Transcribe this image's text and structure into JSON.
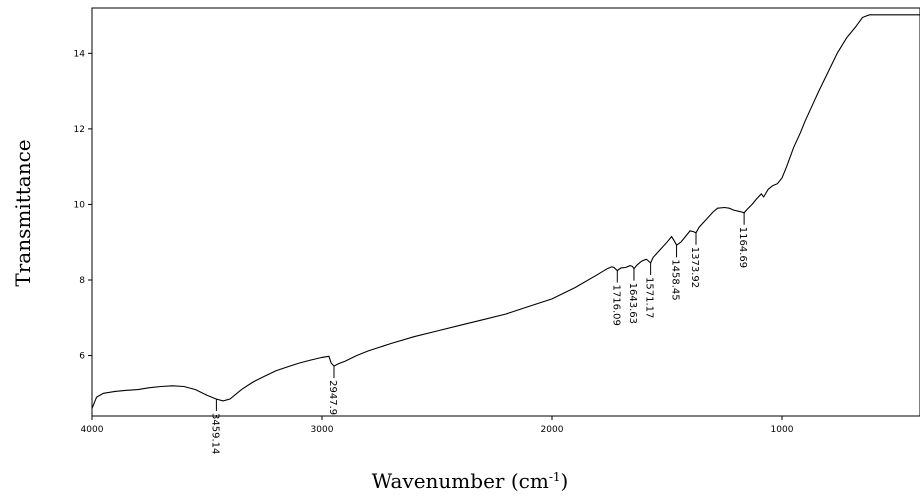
{
  "chart_data": {
    "type": "line",
    "xlabel": "Wavenumber (cm",
    "xlabel_sup": "-1",
    "xlabel_tail": ")",
    "ylabel": "Transmittance",
    "xlim": [
      4000,
      400
    ],
    "ylim": [
      4.4,
      15.2
    ],
    "x_ticks": [
      4000,
      3000,
      2000,
      1000
    ],
    "x_tick_labels": [
      "4000",
      "3000",
      "2000",
      "1000"
    ],
    "y_ticks": [
      6,
      8,
      10,
      12,
      14
    ],
    "y_tick_labels": [
      "6",
      "8",
      "10",
      "12",
      "14"
    ],
    "grid": false,
    "series": [
      {
        "color": "#000000",
        "x": [
          4000,
          3980,
          3950,
          3900,
          3850,
          3800,
          3750,
          3700,
          3650,
          3600,
          3550,
          3500,
          3460,
          3430,
          3400,
          3350,
          3300,
          3250,
          3200,
          3150,
          3100,
          3050,
          3000,
          2970,
          2960,
          2947.9,
          2930,
          2900,
          2850,
          2800,
          2700,
          2600,
          2500,
          2400,
          2300,
          2200,
          2100,
          2000,
          1900,
          1800,
          1760,
          1740,
          1730,
          1716.09,
          1700,
          1680,
          1660,
          1650,
          1643.63,
          1630,
          1610,
          1590,
          1580,
          1571.17,
          1560,
          1530,
          1500,
          1480,
          1470,
          1458.45,
          1440,
          1420,
          1400,
          1385,
          1373.92,
          1360,
          1330,
          1300,
          1280,
          1250,
          1230,
          1210,
          1190,
          1175,
          1164.69,
          1150,
          1130,
          1110,
          1090,
          1080,
          1070,
          1060,
          1040,
          1020,
          1000,
          980,
          950,
          920,
          900,
          870,
          840,
          800,
          760,
          720,
          680,
          650,
          620,
          600,
          400
        ],
        "y": [
          4.6,
          4.9,
          5.0,
          5.05,
          5.08,
          5.1,
          5.15,
          5.18,
          5.2,
          5.18,
          5.1,
          4.95,
          4.85,
          4.8,
          4.85,
          5.1,
          5.3,
          5.45,
          5.6,
          5.7,
          5.8,
          5.88,
          5.95,
          5.98,
          5.8,
          5.72,
          5.78,
          5.85,
          6.0,
          6.12,
          6.32,
          6.5,
          6.65,
          6.8,
          6.95,
          7.1,
          7.3,
          7.5,
          7.8,
          8.15,
          8.3,
          8.35,
          8.33,
          8.25,
          8.32,
          8.33,
          8.38,
          8.36,
          8.3,
          8.4,
          8.5,
          8.55,
          8.5,
          8.45,
          8.6,
          8.8,
          9.0,
          9.15,
          9.05,
          8.92,
          9.0,
          9.15,
          9.3,
          9.28,
          9.25,
          9.4,
          9.6,
          9.8,
          9.9,
          9.92,
          9.9,
          9.85,
          9.82,
          9.8,
          9.78,
          9.88,
          10.0,
          10.15,
          10.28,
          10.2,
          10.3,
          10.4,
          10.5,
          10.55,
          10.7,
          11.0,
          11.5,
          11.9,
          12.2,
          12.6,
          13.0,
          13.5,
          14.0,
          14.4,
          14.7,
          14.95,
          15.02,
          15.02,
          15.02
        ]
      }
    ],
    "annotations": [
      {
        "label": "3459.14",
        "x": 3459.14,
        "y": 4.85
      },
      {
        "label": "2947.9",
        "x": 2947.9,
        "y": 5.72
      },
      {
        "label": "1716.09",
        "x": 1716.09,
        "y": 8.25
      },
      {
        "label": "1643.63",
        "x": 1643.63,
        "y": 8.3
      },
      {
        "label": "1571.17",
        "x": 1571.17,
        "y": 8.45
      },
      {
        "label": "1458.45",
        "x": 1458.45,
        "y": 8.92
      },
      {
        "label": "1373.92",
        "x": 1373.92,
        "y": 9.25
      },
      {
        "label": "1164.69",
        "x": 1164.69,
        "y": 9.78
      }
    ]
  }
}
